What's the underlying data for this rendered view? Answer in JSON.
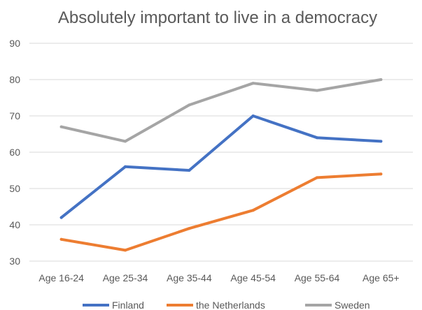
{
  "chart_data": {
    "type": "line",
    "title": "Absolutely important to live in a democracy",
    "categories": [
      "Age 16-24",
      "Age 25-34",
      "Age 35-44",
      "Age 45-54",
      "Age 55-64",
      "Age 65+"
    ],
    "ylim": [
      30,
      90
    ],
    "yticks": [
      30,
      40,
      50,
      60,
      70,
      80,
      90
    ],
    "grid": true,
    "legend_position": "bottom",
    "series": [
      {
        "name": "Finland",
        "color": "#4472c4",
        "values": [
          42,
          56,
          55,
          70,
          64,
          63
        ]
      },
      {
        "name": "the Netherlands",
        "color": "#ed7d31",
        "values": [
          36,
          33,
          39,
          44,
          53,
          54
        ]
      },
      {
        "name": "Sweden",
        "color": "#a5a5a5",
        "values": [
          67,
          63,
          73,
          79,
          77,
          80
        ]
      }
    ]
  }
}
